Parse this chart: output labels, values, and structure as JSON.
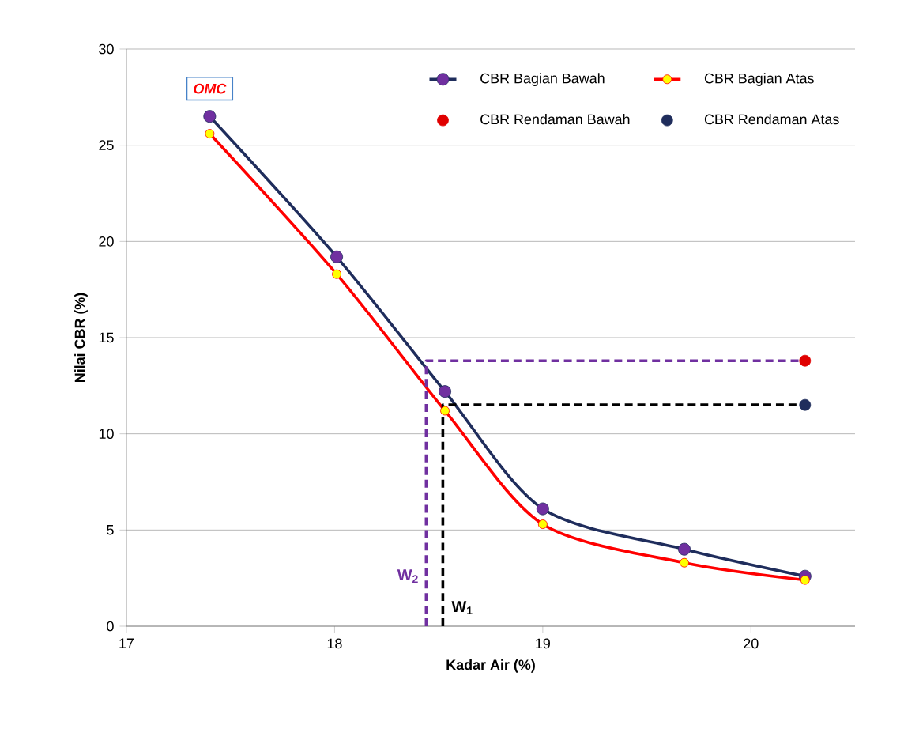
{
  "chart_data": {
    "type": "line",
    "xlabel": "Kadar Air (%)",
    "ylabel": "Nilai CBR (%)",
    "xlim": [
      17,
      20.5
    ],
    "xticks": [
      17,
      18,
      19,
      20
    ],
    "ylim": [
      0,
      30
    ],
    "yticks": [
      0,
      5,
      10,
      15,
      20,
      25,
      30
    ],
    "grid": "y",
    "legend": "top right",
    "marker": "circle",
    "line_style": "solid",
    "series": [
      {
        "name": "CBR Bagian Bawah",
        "color": "#1f2d5c",
        "x": [
          17.4,
          18.01,
          18.53,
          19.0,
          19.68,
          20.26
        ],
        "values": [
          26.5,
          19.2,
          12.2,
          6.1,
          4.0,
          2.6
        ]
      },
      {
        "name": "CBR Bagian Atas",
        "color": "#ff0000",
        "x": [
          17.4,
          18.01,
          18.53,
          19.0,
          19.68,
          20.26
        ],
        "values": [
          25.6,
          18.3,
          11.2,
          5.3,
          3.3,
          2.4
        ]
      },
      {
        "name": "CBR Rendaman Bawah",
        "type": "scatter",
        "color": "#e00000",
        "x": [
          20.26
        ],
        "values": [
          13.8
        ]
      },
      {
        "name": "CBR Rendaman Atas",
        "type": "scatter",
        "color": "#1f2d5c",
        "x": [
          20.26
        ],
        "values": [
          11.5
        ]
      },
      {
        "type": "line",
        "color": "#7030a0",
        "line_style": "dashed",
        "marker": "none",
        "x": [
          18.44,
          18.44,
          20.26
        ],
        "values": [
          0,
          13.8,
          13.8
        ]
      },
      {
        "type": "line",
        "color": "#000000",
        "line_style": "dashed",
        "marker": "none",
        "x": [
          18.52,
          18.52,
          20.26
        ],
        "values": [
          0,
          11.5,
          11.5
        ]
      }
    ],
    "annotations": [
      {
        "text": "OMC",
        "x": 17.4,
        "y": 26.5
      },
      "W$_{2}$",
      "W$_{1}$"
    ]
  }
}
